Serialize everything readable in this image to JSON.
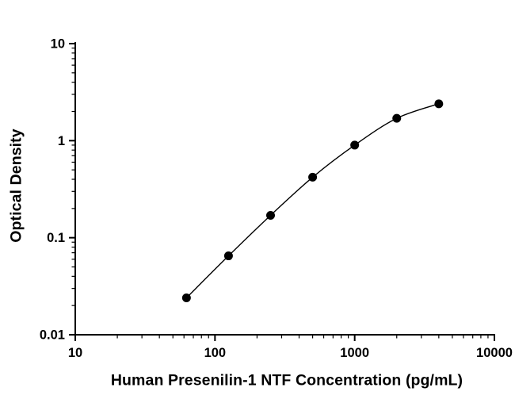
{
  "chart_data": {
    "type": "scatter",
    "title": "",
    "xlabel": "Human Presenilin-1 NTF Concentration (pg/mL)",
    "ylabel": "Optical Density",
    "x_scale": "log",
    "y_scale": "log",
    "xlim": [
      10,
      10000
    ],
    "ylim": [
      0.01,
      10
    ],
    "x_ticks": [
      {
        "value": 10,
        "label": "10"
      },
      {
        "value": 100,
        "label": "100"
      },
      {
        "value": 1000,
        "label": "1000"
      },
      {
        "value": 10000,
        "label": "10000"
      }
    ],
    "y_ticks": [
      {
        "value": 0.01,
        "label": "0.01"
      },
      {
        "value": 0.1,
        "label": "0.1"
      },
      {
        "value": 1,
        "label": "1"
      },
      {
        "value": 10,
        "label": "10"
      }
    ],
    "minor_ticks": true,
    "grid": false,
    "legend": false,
    "series": [
      {
        "name": "standard-curve",
        "marker": "filled-circle",
        "line": "smooth",
        "color": "#000000",
        "x": [
          62.5,
          125,
          250,
          500,
          1000,
          2000,
          4000
        ],
        "y": [
          0.024,
          0.065,
          0.17,
          0.42,
          0.9,
          1.7,
          2.4
        ]
      }
    ]
  },
  "colors": {
    "background": "#ffffff",
    "axis": "#000000",
    "text": "#000000",
    "marker": "#000000"
  }
}
